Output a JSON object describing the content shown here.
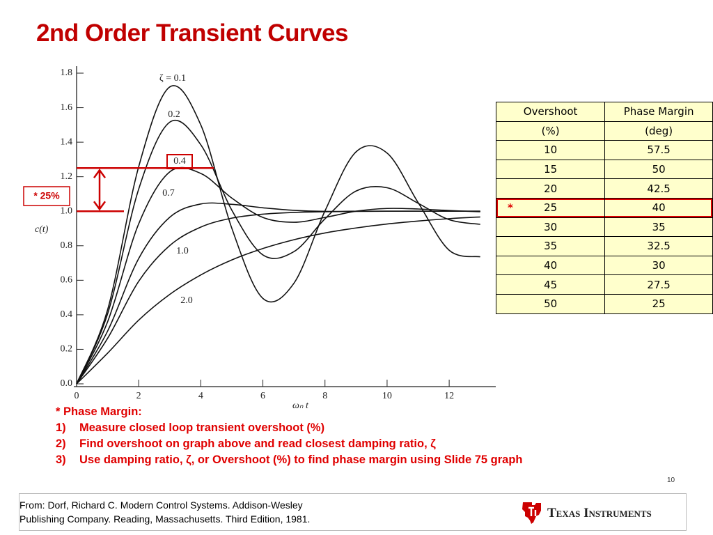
{
  "header": {
    "title": "2nd Order Transient Curves"
  },
  "chart_data": {
    "type": "line",
    "x_label": "ωₙ t",
    "y_label": "c(t)",
    "x": [
      0,
      1,
      2,
      3,
      4,
      5,
      6,
      7,
      8,
      9,
      10,
      11,
      12,
      13
    ],
    "series": [
      {
        "name": "ζ = 0.1",
        "color": "#111111",
        "values": [
          0,
          0.43,
          1.258,
          1.72,
          1.5,
          0.901,
          0.495,
          0.583,
          1.002,
          1.344,
          1.337,
          1.05,
          0.774,
          0.736
        ]
      },
      {
        "name": "0.2",
        "color": "#111111",
        "values": [
          0,
          0.406,
          1.128,
          1.516,
          1.385,
          1.006,
          0.747,
          0.766,
          0.956,
          1.117,
          1.136,
          1.046,
          0.951,
          0.924
        ]
      },
      {
        "name": "0.4",
        "color": "#111111",
        "values": [
          0,
          0.36,
          0.927,
          1.228,
          1.219,
          1.076,
          0.964,
          0.936,
          0.964,
          1.0,
          1.016,
          1.013,
          1.004,
          0.997
        ]
      },
      {
        "name": "0.7",
        "color": "#111111",
        "values": [
          0,
          0.306,
          0.726,
          0.965,
          1.042,
          1.04,
          1.02,
          1.005,
          0.999,
          1.0,
          1.0,
          1.0,
          1.0,
          1.0
        ]
      },
      {
        "name": "1.0",
        "color": "#111111",
        "values": [
          0,
          0.264,
          0.594,
          0.801,
          0.908,
          0.96,
          0.983,
          0.993,
          0.997,
          0.999,
          1.0,
          1.0,
          1.0,
          1.0
        ]
      },
      {
        "name": "2.0",
        "color": "#111111",
        "values": [
          0,
          0.178,
          0.369,
          0.518,
          0.631,
          0.718,
          0.784,
          0.835,
          0.874,
          0.903,
          0.926,
          0.943,
          0.957,
          0.967
        ]
      }
    ],
    "highlight_series": 2,
    "highlight_color": "#cc0000",
    "xlim": [
      0,
      13.5
    ],
    "ylim": [
      0,
      1.8
    ],
    "xticks": [
      0,
      2,
      4,
      6,
      8,
      10,
      12
    ],
    "yticks": [
      {
        "value": 0,
        "label": "0.0"
      },
      0.2,
      0.4,
      0.6,
      0.8,
      {
        "value": 1,
        "label": "1.0"
      },
      1.2,
      1.4,
      1.6,
      1.8
    ],
    "annotation": {
      "label": "* 25%",
      "top": 1.25,
      "base": 1,
      "color": "#cc0000"
    }
  },
  "table": {
    "header": [
      [
        "Overshoot",
        "Phase Margin"
      ],
      [
        "(%)",
        "(deg)"
      ]
    ],
    "rows": [
      [
        10,
        57.5
      ],
      [
        15,
        50
      ],
      [
        20,
        42.5
      ],
      [
        25,
        40
      ],
      [
        30,
        35
      ],
      [
        35,
        32.5
      ],
      [
        40,
        30
      ],
      [
        45,
        27.5
      ],
      [
        50,
        25
      ]
    ],
    "highlight_row": 3,
    "highlight_marker": "*"
  },
  "notes": {
    "heading": "* Phase Margin:",
    "items": [
      {
        "number": "1)",
        "text": "Measure closed loop transient overshoot (%)"
      },
      {
        "number": "2)",
        "text": "Find overshoot on graph above and read closest damping ratio, ζ"
      },
      {
        "number": "3)",
        "text": "Use damping ratio, ζ, or Overshoot (%) to find phase margin using Slide 75 graph"
      }
    ]
  },
  "page_number": "10",
  "footer": {
    "citation": [
      "From: Dorf, Richard C.  Modern Control Systems. Addison-Wesley",
      "Publishing Company. Reading, Massachusetts. Third Edition, 1981."
    ],
    "logo": "Texas Instruments"
  }
}
